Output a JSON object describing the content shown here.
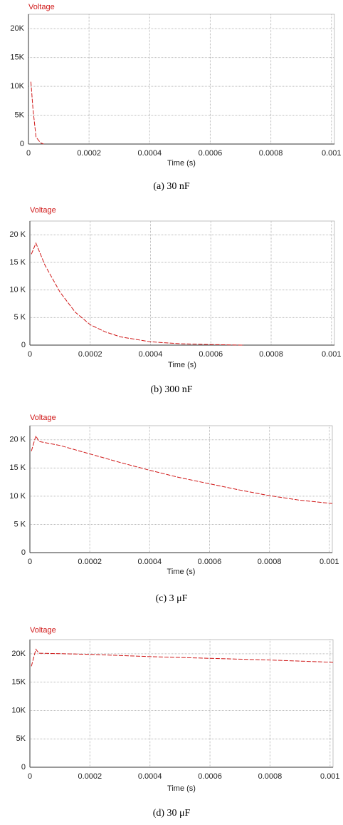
{
  "chart_data": [
    {
      "type": "line",
      "caption": "(a) 30 nF",
      "xlabel": "Time (s)",
      "x": [
        8e-06,
        1.5e-05,
        2.5e-05,
        4e-05,
        5e-05
      ],
      "series": [
        {
          "name": "Voltage",
          "color": "#d01818",
          "values": [
            10800,
            6000,
            1200,
            200,
            0
          ]
        }
      ],
      "xlim": [
        0,
        0.00101
      ],
      "ylim": [
        0,
        22500
      ],
      "xticks": [
        0,
        0.0002,
        0.0004,
        0.0006,
        0.0008,
        0.001
      ],
      "yticks": [
        0,
        {
          "value": 5000,
          "label": "5K"
        },
        {
          "value": 10000,
          "label": "10K"
        },
        {
          "value": 15000,
          "label": "15K"
        },
        {
          "value": 20000,
          "label": "20K"
        }
      ],
      "grid": true
    },
    {
      "type": "line",
      "caption": "(b) 300 nF",
      "xlabel": "Time (s)",
      "x": [
        5e-06,
        2e-05,
        5e-05,
        0.0001,
        0.00015,
        0.0002,
        0.00025,
        0.0003,
        0.0004,
        0.0005,
        0.0006,
        0.00071
      ],
      "series": [
        {
          "name": "Voltage",
          "color": "#d01818",
          "values": [
            16500,
            18500,
            14500,
            9600,
            6000,
            3700,
            2400,
            1500,
            600,
            250,
            100,
            0
          ]
        }
      ],
      "xlim": [
        0,
        0.00101
      ],
      "ylim": [
        0,
        22500
      ],
      "xticks": [
        0,
        0.0002,
        0.0004,
        0.0006,
        0.0008,
        0.001
      ],
      "yticks": [
        0,
        {
          "value": 5000,
          "label": "5 K"
        },
        {
          "value": 10000,
          "label": "10 K"
        },
        {
          "value": 15000,
          "label": "15 K"
        },
        {
          "value": 20000,
          "label": "20 K"
        }
      ],
      "grid": true
    },
    {
      "type": "line",
      "caption": "(c) 3 μF",
      "xlabel": "Time (s)",
      "x": [
        5e-06,
        2e-05,
        3e-05,
        0.0001,
        0.0002,
        0.0003,
        0.0004,
        0.0005,
        0.0006,
        0.0007,
        0.0008,
        0.0009,
        0.00101
      ],
      "series": [
        {
          "name": "Voltage",
          "color": "#d01818",
          "values": [
            18000,
            20700,
            19700,
            19000,
            17500,
            16000,
            14600,
            13300,
            12200,
            11100,
            10100,
            9300,
            8700
          ]
        }
      ],
      "xlim": [
        0,
        0.00101
      ],
      "ylim": [
        0,
        22500
      ],
      "xticks": [
        0,
        0.0002,
        0.0004,
        0.0006,
        0.0008,
        0.001
      ],
      "yticks": [
        0,
        {
          "value": 5000,
          "label": "5 K"
        },
        {
          "value": 10000,
          "label": "10 K"
        },
        {
          "value": 15000,
          "label": "15 K"
        },
        {
          "value": 20000,
          "label": "20 K"
        }
      ],
      "grid": true
    },
    {
      "type": "line",
      "caption": "(d) 30 μF",
      "xlabel": "Time (s)",
      "x": [
        5e-06,
        2e-05,
        3e-05,
        0.0002,
        0.0004,
        0.0006,
        0.0008,
        0.00101
      ],
      "series": [
        {
          "name": "Voltage",
          "color": "#d01818",
          "values": [
            17800,
            20800,
            20100,
            19900,
            19500,
            19200,
            18900,
            18500
          ]
        }
      ],
      "xlim": [
        0,
        0.00101
      ],
      "ylim": [
        0,
        22500
      ],
      "xticks": [
        0,
        0.0002,
        0.0004,
        0.0006,
        0.0008,
        0.001
      ],
      "yticks": [
        0,
        {
          "value": 5000,
          "label": "5K"
        },
        {
          "value": 10000,
          "label": "10K"
        },
        {
          "value": 15000,
          "label": "15K"
        },
        {
          "value": 20000,
          "label": "20K"
        }
      ],
      "grid": true
    }
  ]
}
